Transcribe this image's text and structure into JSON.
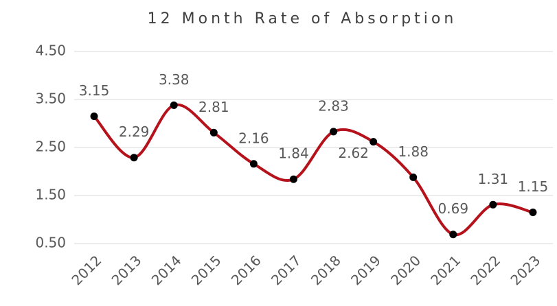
{
  "chart_data": {
    "type": "line",
    "title": "12 Month Rate of Absorption",
    "categories": [
      "2012",
      "2013",
      "2014",
      "2015",
      "2016",
      "2017",
      "2018",
      "2019",
      "2020",
      "2021",
      "2022",
      "2023"
    ],
    "values": [
      3.15,
      2.29,
      3.38,
      2.81,
      2.16,
      1.84,
      2.83,
      2.62,
      1.88,
      0.69,
      1.31,
      1.15
    ],
    "color": "#b5121b",
    "marker_color": "#000000",
    "ylim": [
      0.5,
      4.5
    ],
    "yticks": [
      {
        "value": 0.5,
        "label": "0.50"
      },
      {
        "value": 1.5,
        "label": "1.50"
      },
      {
        "value": 2.5,
        "label": "2.50"
      },
      {
        "value": 3.5,
        "label": "3.50"
      },
      {
        "value": 4.5,
        "label": "4.50"
      }
    ],
    "grid": true,
    "smooth": true
  }
}
